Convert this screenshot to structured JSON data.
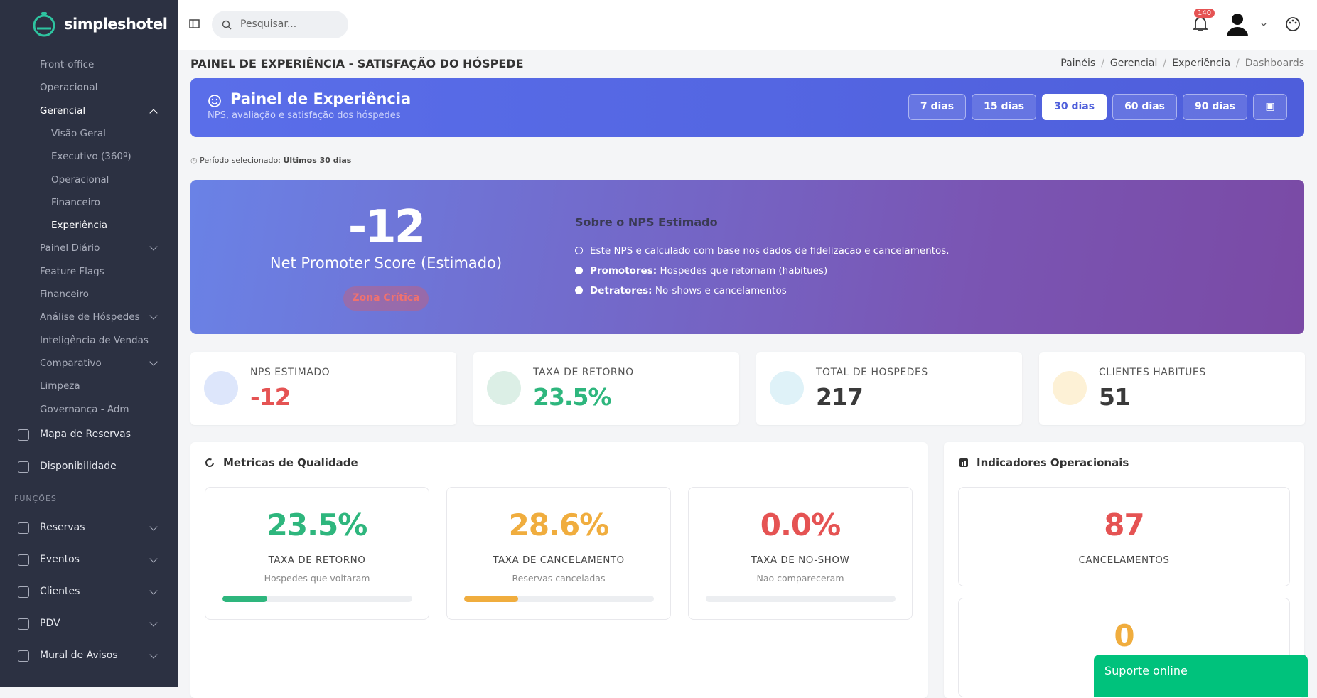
{
  "brand": "simpleshotel",
  "search_placeholder": "Pesquisar...",
  "notifications": "140",
  "sidebar": {
    "items": [
      {
        "label": "Front-office",
        "level": 1
      },
      {
        "label": "Operacional",
        "level": 1
      },
      {
        "label": "Gerencial",
        "level": 1,
        "active": true,
        "chevron": "up"
      },
      {
        "label": "Visão Geral",
        "level": 2
      },
      {
        "label": "Executivo (360º)",
        "level": 2
      },
      {
        "label": "Operacional",
        "level": 2
      },
      {
        "label": "Financeiro",
        "level": 2
      },
      {
        "label": "Experiência",
        "level": 2,
        "active": true
      },
      {
        "label": "Painel Diário",
        "level": 1,
        "chevron": "down"
      },
      {
        "label": "Feature Flags",
        "level": 1
      },
      {
        "label": "Financeiro",
        "level": 1
      },
      {
        "label": "Análise de Hóspedes",
        "level": 1,
        "chevron": "down"
      },
      {
        "label": "Inteligência de Vendas",
        "level": 1
      },
      {
        "label": "Comparativo",
        "level": 1,
        "chevron": "down"
      },
      {
        "label": "Limpeza",
        "level": 1
      },
      {
        "label": "Governança - Adm",
        "level": 1
      }
    ],
    "main_items": [
      "Mapa de Reservas",
      "Disponibilidade"
    ],
    "section": "FUNÇÕES",
    "functions": [
      "Reservas",
      "Eventos",
      "Clientes",
      "PDV",
      "Mural de Avisos"
    ]
  },
  "page_title": "PAINEL DE EXPERIÊNCIA - SATISFAÇÃO DO HÓSPEDE",
  "breadcrumb": [
    "Painéis",
    "Gerencial",
    "Experiência",
    "Dashboards"
  ],
  "header": {
    "title": "Painel de Experiência",
    "subtitle": "NPS, avaliação e satisfação dos hóspedes",
    "periods": [
      "7 dias",
      "15 dias",
      "30 dias",
      "60 dias",
      "90 dias"
    ],
    "active_period": 2
  },
  "period_note": {
    "label": "Período selecionado:",
    "value": "Últimos 30 dias"
  },
  "nps": {
    "score": "-12",
    "label": "Net Promoter Score (Estimado)",
    "zone": "Zona Crítica",
    "about_title": "Sobre o NPS Estimado",
    "notes": [
      {
        "bold": "",
        "text": "Este NPS e calculado com base nos dados de fidelizacao e cancelamentos."
      },
      {
        "bold": "Promotores:",
        "text": "Hospedes que retornam (habitues)"
      },
      {
        "bold": "Detratores:",
        "text": "No-shows e cancelamentos"
      }
    ]
  },
  "stats": [
    {
      "label": "NPS ESTIMADO",
      "value": "-12",
      "color": "#e55353"
    },
    {
      "label": "TAXA DE RETORNO",
      "value": "23.5%",
      "color": "#2eb67d"
    },
    {
      "label": "TOTAL DE HOSPEDES",
      "value": "217",
      "color": "#3a3a3a"
    },
    {
      "label": "CLIENTES HABITUES",
      "value": "51",
      "color": "#3a3a3a"
    }
  ],
  "quality": {
    "title": "Metricas de Qualidade",
    "metrics": [
      {
        "value": 23.5,
        "label": "23.5%",
        "name": "TAXA DE RETORNO",
        "desc": "Hospedes que voltaram",
        "color": "#2eb67d"
      },
      {
        "value": 28.6,
        "label": "28.6%",
        "name": "TAXA DE CANCELAMENTO",
        "desc": "Reservas canceladas",
        "color": "#f0ad3e"
      },
      {
        "value": 0.0,
        "label": "0.0%",
        "name": "TAXA DE NO-SHOW",
        "desc": "Nao compareceram",
        "color": "#e55353"
      }
    ]
  },
  "operational": {
    "title": "Indicadores Operacionais",
    "items": [
      {
        "value": "87",
        "label": "CANCELAMENTOS",
        "color": "#e55353"
      },
      {
        "value": "0",
        "color": "#f0ad3e"
      }
    ]
  },
  "support": "Suporte online"
}
